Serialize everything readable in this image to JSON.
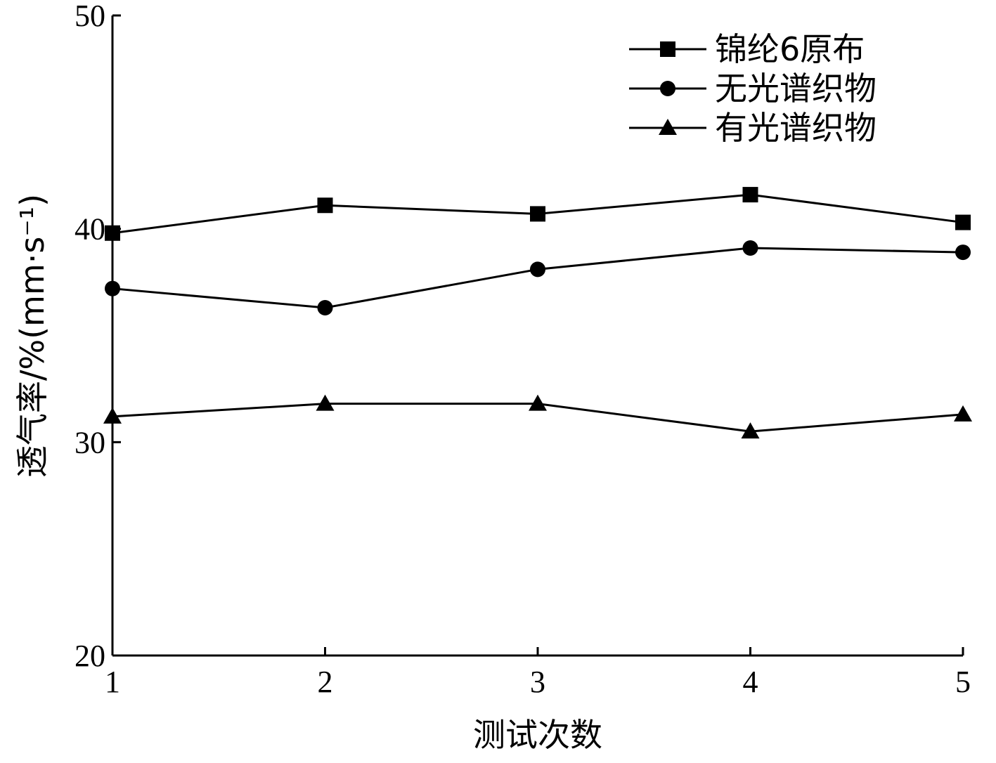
{
  "chart_data": {
    "type": "line",
    "xlabel": "测试次数",
    "ylabel": "透气率/%(mm·s⁻¹)",
    "x": [
      1,
      2,
      3,
      4,
      5
    ],
    "xlim": [
      1,
      5
    ],
    "ylim": [
      20,
      50
    ],
    "xticks": [
      "1",
      "2",
      "3",
      "4",
      "5"
    ],
    "yticks": [
      "20",
      "30",
      "40",
      "50"
    ],
    "grid": false,
    "legend_position": "top-right",
    "series": [
      {
        "name": "锦纶6原布",
        "marker": "square",
        "values": [
          39.8,
          41.1,
          40.7,
          41.6,
          40.3
        ]
      },
      {
        "name": "无光谱织物",
        "marker": "circle",
        "values": [
          37.2,
          36.3,
          38.1,
          39.1,
          38.9
        ]
      },
      {
        "name": "有光谱织物",
        "marker": "triangle",
        "values": [
          31.2,
          31.8,
          31.8,
          30.5,
          31.3
        ]
      }
    ],
    "colors": {
      "line": "#000000",
      "background": "#ffffff"
    }
  }
}
